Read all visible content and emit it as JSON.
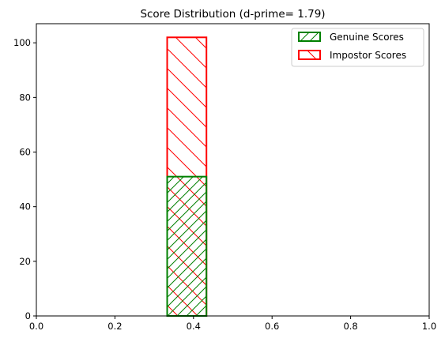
{
  "chart_data": {
    "type": "histogram",
    "title": "Score Distribution (d-prime= 1.79)",
    "xlabel": "",
    "ylabel": "",
    "xlim": [
      0.0,
      1.0
    ],
    "ylim": [
      0,
      107
    ],
    "xticks": [
      "0.0",
      "0.2",
      "0.4",
      "0.6",
      "0.8",
      "1.0"
    ],
    "yticks": [
      "0",
      "20",
      "40",
      "60",
      "80",
      "100"
    ],
    "grid": false,
    "legend_position": "top-right",
    "series": [
      {
        "name": "Genuine Scores",
        "color": "#008000",
        "hatch": "forward-diagonal",
        "bins": [
          {
            "x0": 0.0,
            "x1": 0.333,
            "value": 0
          },
          {
            "x0": 0.333,
            "x1": 0.433,
            "value": 51
          },
          {
            "x0": 0.433,
            "x1": 0.833,
            "value": 0
          }
        ]
      },
      {
        "name": "Impostor Scores",
        "color": "#ff0000",
        "hatch": "back-diagonal",
        "bins": [
          {
            "x0": 0.0,
            "x1": 0.333,
            "value": 0
          },
          {
            "x0": 0.333,
            "x1": 0.433,
            "value": 102
          },
          {
            "x0": 0.433,
            "x1": 0.833,
            "value": 0
          }
        ]
      }
    ]
  }
}
